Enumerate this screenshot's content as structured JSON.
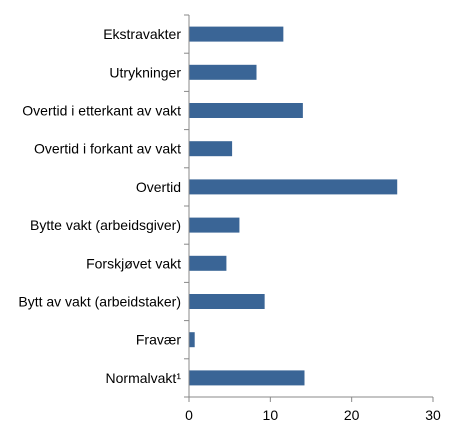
{
  "chart_data": {
    "type": "bar",
    "orientation": "horizontal",
    "categories": [
      "Ekstravakter",
      "Utrykninger",
      "Overtid i etterkant av vakt",
      "Overtid i forkant av vakt",
      "Overtid",
      "Bytte vakt (arbeidsgiver)",
      "Forskjøvet vakt",
      "Bytt av vakt (arbeidstaker)",
      "Fravær",
      "Normalvakt¹"
    ],
    "values": [
      11.6,
      8.3,
      14.0,
      5.3,
      25.6,
      6.2,
      4.6,
      9.3,
      0.7,
      14.2
    ],
    "xlim": [
      0,
      30
    ],
    "xticks": [
      0,
      10,
      20,
      30
    ],
    "xtick_labels": [
      "0",
      "10",
      "20",
      "30"
    ],
    "grid": false,
    "bar_color": "#3a6596",
    "axis_color": "#888888"
  }
}
